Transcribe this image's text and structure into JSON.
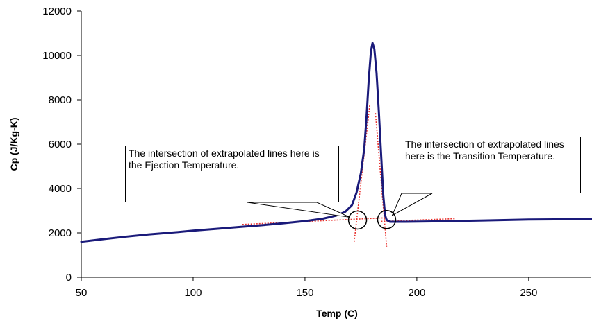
{
  "chart_data": {
    "type": "line",
    "title": "",
    "xlabel": "Temp (C)",
    "ylabel": "Cp (J/Kg-K)",
    "xlim": [
      50,
      278
    ],
    "ylim": [
      0,
      12000
    ],
    "x_ticks": [
      50,
      100,
      150,
      200,
      250
    ],
    "y_ticks": [
      0,
      2000,
      4000,
      6000,
      8000,
      10000,
      12000
    ],
    "grid": false,
    "legend": "none",
    "series": [
      {
        "color": "#1a1a7a",
        "points": [
          [
            50,
            1600
          ],
          [
            60,
            1720
          ],
          [
            70,
            1830
          ],
          [
            80,
            1930
          ],
          [
            90,
            2010
          ],
          [
            100,
            2100
          ],
          [
            110,
            2180
          ],
          [
            120,
            2260
          ],
          [
            130,
            2340
          ],
          [
            140,
            2430
          ],
          [
            150,
            2530
          ],
          [
            158,
            2640
          ],
          [
            164,
            2780
          ],
          [
            168,
            2950
          ],
          [
            171,
            3250
          ],
          [
            173,
            3800
          ],
          [
            175,
            4700
          ],
          [
            176.5,
            5800
          ],
          [
            177.5,
            7200
          ],
          [
            178.5,
            8900
          ],
          [
            179.5,
            10200
          ],
          [
            180.2,
            10560
          ],
          [
            181,
            10300
          ],
          [
            182,
            9200
          ],
          [
            183,
            7500
          ],
          [
            184,
            5600
          ],
          [
            185,
            3700
          ],
          [
            185.8,
            2800
          ],
          [
            186.5,
            2580
          ],
          [
            188,
            2500
          ],
          [
            195,
            2500
          ],
          [
            210,
            2520
          ],
          [
            230,
            2560
          ],
          [
            250,
            2600
          ],
          [
            278,
            2620
          ]
        ]
      }
    ],
    "guide_lines": [
      {
        "color": "#e8322e",
        "style": "dotted",
        "points": [
          [
            122,
            2380
          ],
          [
            186,
            2680
          ]
        ]
      },
      {
        "color": "#e8322e",
        "style": "dotted",
        "points": [
          [
            172,
            1600
          ],
          [
            179,
            7800
          ]
        ]
      },
      {
        "color": "#e8322e",
        "style": "dotted",
        "points": [
          [
            181.5,
            7400
          ],
          [
            186.5,
            1380
          ]
        ]
      },
      {
        "color": "#e8322e",
        "style": "dotted",
        "points": [
          [
            184,
            2520
          ],
          [
            217,
            2640
          ]
        ]
      }
    ],
    "highlight_circles": [
      {
        "x": 173.5,
        "y": 2580
      },
      {
        "x": 186.5,
        "y": 2600
      }
    ],
    "annotations": [
      {
        "text": "The intersection of extrapolated lines here is the Ejection Temperature."
      },
      {
        "text": "The intersection of extrapolated lines here is the Transition Temperature."
      }
    ]
  }
}
